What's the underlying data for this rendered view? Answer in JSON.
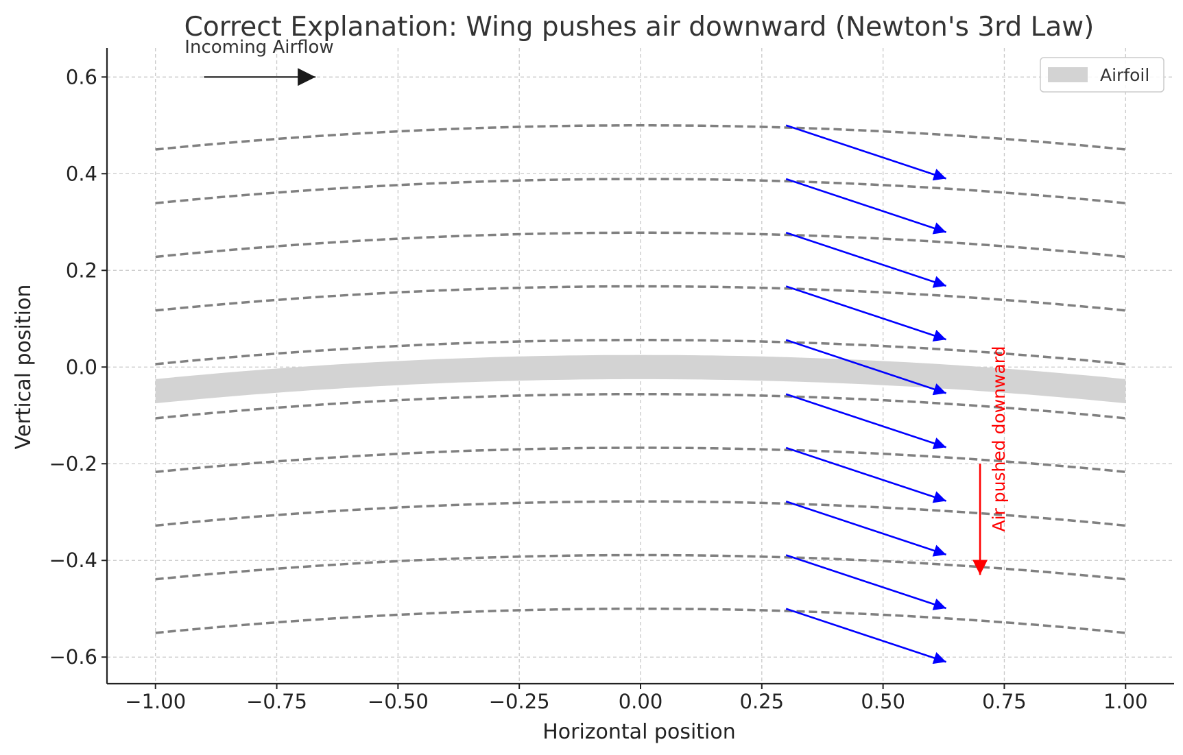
{
  "chart_data": {
    "type": "line",
    "title": "Correct Explanation: Wing pushes air downward (Newton's 3rd Law)",
    "xlabel": "Horizontal position",
    "ylabel": "Vertical position",
    "xlim": [
      -1.1,
      1.1
    ],
    "ylim": [
      -0.655,
      0.66
    ],
    "xticks": [
      -1.0,
      -0.75,
      -0.5,
      -0.25,
      0.0,
      0.25,
      0.5,
      0.75,
      1.0
    ],
    "xtick_labels": [
      "−1.00",
      "−0.75",
      "−0.50",
      "−0.25",
      "0.00",
      "0.25",
      "0.50",
      "0.75",
      "1.00"
    ],
    "yticks": [
      0.6,
      0.4,
      0.2,
      0.0,
      -0.2,
      -0.4,
      -0.6
    ],
    "ytick_labels": [
      "0.6",
      "0.4",
      "0.2",
      "0.0",
      "−0.2",
      "−0.4",
      "−0.6"
    ],
    "grid": true,
    "legend": {
      "position": "top-right",
      "entries": [
        {
          "label": "Airfoil",
          "color": "#d3d3d3"
        }
      ]
    },
    "airfoil": {
      "name": "Airfoil",
      "color": "#d3d3d3",
      "camber_peak": 0.0,
      "camber_ends": -0.05,
      "thickness": 0.05
    },
    "streamlines": {
      "color": "#808080",
      "style": "dashed",
      "peak_offsets": [
        0.5,
        0.389,
        0.278,
        0.167,
        0.056,
        -0.056,
        -0.167,
        -0.278,
        -0.389,
        -0.5
      ],
      "end_drop": 0.05,
      "x_range": [
        -1.0,
        1.0
      ]
    },
    "downwash_arrows": {
      "color": "#0000ff",
      "start_x": 0.3,
      "end_x": 0.63,
      "dy": -0.11,
      "start_y": [
        0.5,
        0.389,
        0.278,
        0.167,
        0.056,
        -0.056,
        -0.167,
        -0.278,
        -0.389,
        -0.5
      ]
    },
    "annotations": [
      {
        "text": "Incoming Airflow",
        "type": "arrow",
        "color": "#000000",
        "from": [
          -0.9,
          0.6
        ],
        "to": [
          -0.67,
          0.6
        ]
      },
      {
        "text": "Air pushed downward",
        "type": "arrow",
        "color": "#ff0000",
        "from": [
          0.7,
          -0.2
        ],
        "to": [
          0.7,
          -0.43
        ]
      }
    ]
  }
}
